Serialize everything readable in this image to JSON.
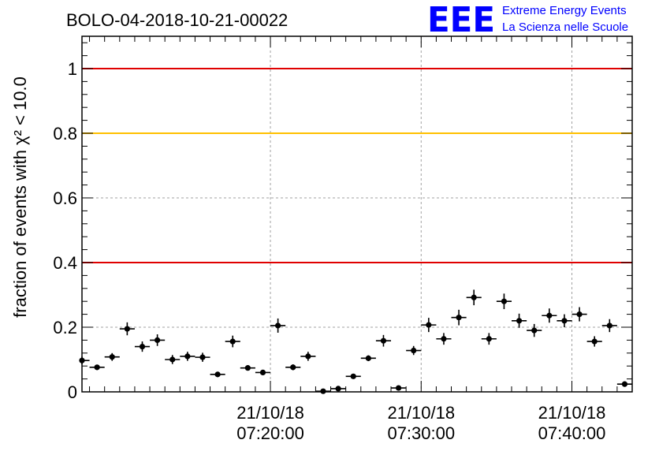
{
  "logo": {
    "mark": "EEE",
    "line1": "Extreme Energy Events",
    "line2": "La Scienza nelle Scuole",
    "color": "#0000ff"
  },
  "chart_data": {
    "type": "scatter",
    "title": "BOLO-04-2018-10-21-00022",
    "ylabel": "fraction of events with χ² < 10.0",
    "ylim": [
      0,
      1.1
    ],
    "yticks": [
      0,
      0.2,
      0.4,
      0.6,
      0.8,
      1
    ],
    "ytick_labels": [
      "0",
      "0.2",
      "0.4",
      "0.6",
      "0.8",
      "1"
    ],
    "xlim_minutes": [
      7.5,
      44.0
    ],
    "xticks": [
      {
        "minute": 20,
        "label_date": "21/10/18",
        "label_time": "07:20:00"
      },
      {
        "minute": 30,
        "label_date": "21/10/18",
        "label_time": "07:30:00"
      },
      {
        "minute": 40,
        "label_date": "21/10/18",
        "label_time": "07:40:00"
      }
    ],
    "grid": true,
    "reference_lines": [
      {
        "y": 1.0,
        "color": "#e00000"
      },
      {
        "y": 0.8,
        "color": "#ffc000"
      },
      {
        "y": 0.4,
        "color": "#e00000"
      }
    ],
    "bin_halfwidth_minutes": 0.5,
    "points": [
      {
        "x": 7.5,
        "y": 0.097,
        "err": 0.012
      },
      {
        "x": 8.5,
        "y": 0.076,
        "err": 0.008
      },
      {
        "x": 9.5,
        "y": 0.108,
        "err": 0.012
      },
      {
        "x": 10.5,
        "y": 0.195,
        "err": 0.02
      },
      {
        "x": 11.5,
        "y": 0.14,
        "err": 0.016
      },
      {
        "x": 12.5,
        "y": 0.16,
        "err": 0.018
      },
      {
        "x": 13.5,
        "y": 0.1,
        "err": 0.014
      },
      {
        "x": 14.5,
        "y": 0.11,
        "err": 0.014
      },
      {
        "x": 15.5,
        "y": 0.107,
        "err": 0.014
      },
      {
        "x": 16.5,
        "y": 0.054,
        "err": 0.006
      },
      {
        "x": 17.5,
        "y": 0.156,
        "err": 0.018
      },
      {
        "x": 18.5,
        "y": 0.074,
        "err": 0.008
      },
      {
        "x": 19.5,
        "y": 0.06,
        "err": 0.006
      },
      {
        "x": 20.5,
        "y": 0.205,
        "err": 0.022
      },
      {
        "x": 21.5,
        "y": 0.076,
        "err": 0.009
      },
      {
        "x": 22.5,
        "y": 0.11,
        "err": 0.014
      },
      {
        "x": 23.5,
        "y": 0.002,
        "err": 0.003
      },
      {
        "x": 24.5,
        "y": 0.01,
        "err": 0.006
      },
      {
        "x": 25.5,
        "y": 0.048,
        "err": 0.007
      },
      {
        "x": 26.5,
        "y": 0.104,
        "err": 0.009
      },
      {
        "x": 27.5,
        "y": 0.158,
        "err": 0.018
      },
      {
        "x": 28.5,
        "y": 0.012,
        "err": 0.005
      },
      {
        "x": 29.5,
        "y": 0.128,
        "err": 0.014
      },
      {
        "x": 30.5,
        "y": 0.207,
        "err": 0.022
      },
      {
        "x": 31.5,
        "y": 0.164,
        "err": 0.018
      },
      {
        "x": 32.5,
        "y": 0.23,
        "err": 0.024
      },
      {
        "x": 33.5,
        "y": 0.292,
        "err": 0.024
      },
      {
        "x": 34.5,
        "y": 0.164,
        "err": 0.018
      },
      {
        "x": 35.5,
        "y": 0.28,
        "err": 0.024
      },
      {
        "x": 36.5,
        "y": 0.22,
        "err": 0.022
      },
      {
        "x": 37.5,
        "y": 0.19,
        "err": 0.02
      },
      {
        "x": 38.5,
        "y": 0.236,
        "err": 0.022
      },
      {
        "x": 39.5,
        "y": 0.22,
        "err": 0.02
      },
      {
        "x": 40.5,
        "y": 0.24,
        "err": 0.022
      },
      {
        "x": 41.5,
        "y": 0.156,
        "err": 0.016
      },
      {
        "x": 42.5,
        "y": 0.205,
        "err": 0.02
      },
      {
        "x": 43.5,
        "y": 0.024,
        "err": 0.005
      }
    ]
  }
}
